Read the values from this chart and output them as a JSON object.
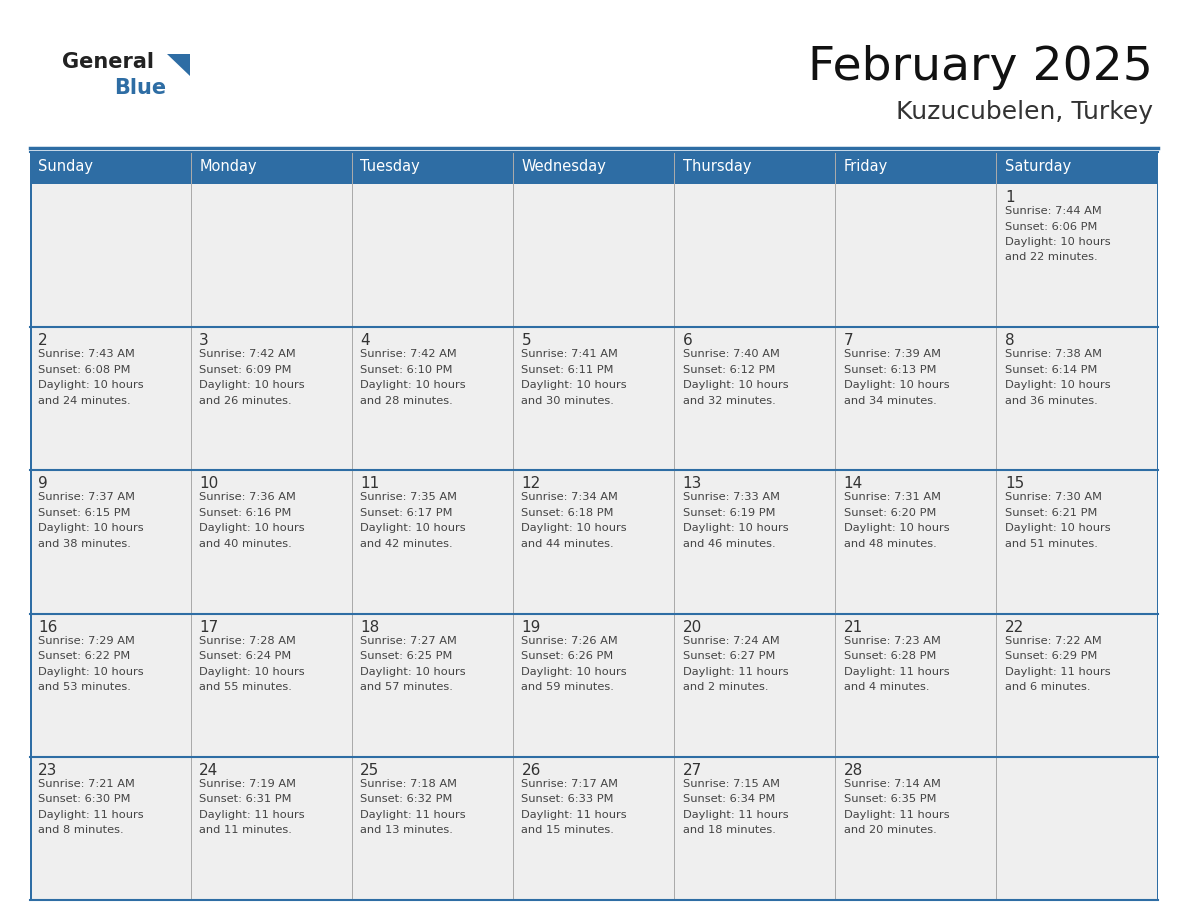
{
  "title": "February 2025",
  "subtitle": "Kuzucubelen, Turkey",
  "days_of_week": [
    "Sunday",
    "Monday",
    "Tuesday",
    "Wednesday",
    "Thursday",
    "Friday",
    "Saturday"
  ],
  "header_bg": "#2E6DA4",
  "header_text_color": "#FFFFFF",
  "cell_bg_white": "#FFFFFF",
  "cell_bg_light": "#EFEFEF",
  "border_color": "#2E6DA4",
  "divider_color": "#2E6DA4",
  "day_number_color": "#333333",
  "text_color": "#444444",
  "logo_general_color": "#222222",
  "logo_blue_color": "#2E6DA4",
  "calendar_data": [
    [
      {
        "day": null,
        "info": null
      },
      {
        "day": null,
        "info": null
      },
      {
        "day": null,
        "info": null
      },
      {
        "day": null,
        "info": null
      },
      {
        "day": null,
        "info": null
      },
      {
        "day": null,
        "info": null
      },
      {
        "day": 1,
        "info": "Sunrise: 7:44 AM\nSunset: 6:06 PM\nDaylight: 10 hours\nand 22 minutes."
      }
    ],
    [
      {
        "day": 2,
        "info": "Sunrise: 7:43 AM\nSunset: 6:08 PM\nDaylight: 10 hours\nand 24 minutes."
      },
      {
        "day": 3,
        "info": "Sunrise: 7:42 AM\nSunset: 6:09 PM\nDaylight: 10 hours\nand 26 minutes."
      },
      {
        "day": 4,
        "info": "Sunrise: 7:42 AM\nSunset: 6:10 PM\nDaylight: 10 hours\nand 28 minutes."
      },
      {
        "day": 5,
        "info": "Sunrise: 7:41 AM\nSunset: 6:11 PM\nDaylight: 10 hours\nand 30 minutes."
      },
      {
        "day": 6,
        "info": "Sunrise: 7:40 AM\nSunset: 6:12 PM\nDaylight: 10 hours\nand 32 minutes."
      },
      {
        "day": 7,
        "info": "Sunrise: 7:39 AM\nSunset: 6:13 PM\nDaylight: 10 hours\nand 34 minutes."
      },
      {
        "day": 8,
        "info": "Sunrise: 7:38 AM\nSunset: 6:14 PM\nDaylight: 10 hours\nand 36 minutes."
      }
    ],
    [
      {
        "day": 9,
        "info": "Sunrise: 7:37 AM\nSunset: 6:15 PM\nDaylight: 10 hours\nand 38 minutes."
      },
      {
        "day": 10,
        "info": "Sunrise: 7:36 AM\nSunset: 6:16 PM\nDaylight: 10 hours\nand 40 minutes."
      },
      {
        "day": 11,
        "info": "Sunrise: 7:35 AM\nSunset: 6:17 PM\nDaylight: 10 hours\nand 42 minutes."
      },
      {
        "day": 12,
        "info": "Sunrise: 7:34 AM\nSunset: 6:18 PM\nDaylight: 10 hours\nand 44 minutes."
      },
      {
        "day": 13,
        "info": "Sunrise: 7:33 AM\nSunset: 6:19 PM\nDaylight: 10 hours\nand 46 minutes."
      },
      {
        "day": 14,
        "info": "Sunrise: 7:31 AM\nSunset: 6:20 PM\nDaylight: 10 hours\nand 48 minutes."
      },
      {
        "day": 15,
        "info": "Sunrise: 7:30 AM\nSunset: 6:21 PM\nDaylight: 10 hours\nand 51 minutes."
      }
    ],
    [
      {
        "day": 16,
        "info": "Sunrise: 7:29 AM\nSunset: 6:22 PM\nDaylight: 10 hours\nand 53 minutes."
      },
      {
        "day": 17,
        "info": "Sunrise: 7:28 AM\nSunset: 6:24 PM\nDaylight: 10 hours\nand 55 minutes."
      },
      {
        "day": 18,
        "info": "Sunrise: 7:27 AM\nSunset: 6:25 PM\nDaylight: 10 hours\nand 57 minutes."
      },
      {
        "day": 19,
        "info": "Sunrise: 7:26 AM\nSunset: 6:26 PM\nDaylight: 10 hours\nand 59 minutes."
      },
      {
        "day": 20,
        "info": "Sunrise: 7:24 AM\nSunset: 6:27 PM\nDaylight: 11 hours\nand 2 minutes."
      },
      {
        "day": 21,
        "info": "Sunrise: 7:23 AM\nSunset: 6:28 PM\nDaylight: 11 hours\nand 4 minutes."
      },
      {
        "day": 22,
        "info": "Sunrise: 7:22 AM\nSunset: 6:29 PM\nDaylight: 11 hours\nand 6 minutes."
      }
    ],
    [
      {
        "day": 23,
        "info": "Sunrise: 7:21 AM\nSunset: 6:30 PM\nDaylight: 11 hours\nand 8 minutes."
      },
      {
        "day": 24,
        "info": "Sunrise: 7:19 AM\nSunset: 6:31 PM\nDaylight: 11 hours\nand 11 minutes."
      },
      {
        "day": 25,
        "info": "Sunrise: 7:18 AM\nSunset: 6:32 PM\nDaylight: 11 hours\nand 13 minutes."
      },
      {
        "day": 26,
        "info": "Sunrise: 7:17 AM\nSunset: 6:33 PM\nDaylight: 11 hours\nand 15 minutes."
      },
      {
        "day": 27,
        "info": "Sunrise: 7:15 AM\nSunset: 6:34 PM\nDaylight: 11 hours\nand 18 minutes."
      },
      {
        "day": 28,
        "info": "Sunrise: 7:14 AM\nSunset: 6:35 PM\nDaylight: 11 hours\nand 20 minutes."
      },
      {
        "day": null,
        "info": null
      }
    ]
  ]
}
